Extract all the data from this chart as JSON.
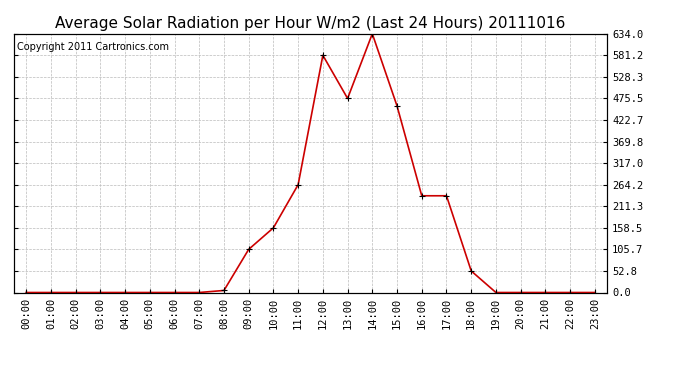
{
  "title": "Average Solar Radiation per Hour W/m2 (Last 24 Hours) 20111016",
  "copyright": "Copyright 2011 Cartronics.com",
  "hours": [
    "00:00",
    "01:00",
    "02:00",
    "03:00",
    "04:00",
    "05:00",
    "06:00",
    "07:00",
    "08:00",
    "09:00",
    "10:00",
    "11:00",
    "12:00",
    "13:00",
    "14:00",
    "15:00",
    "16:00",
    "17:00",
    "18:00",
    "19:00",
    "20:00",
    "21:00",
    "22:00",
    "23:00"
  ],
  "values": [
    0.0,
    0.0,
    0.0,
    0.0,
    0.0,
    0.0,
    0.0,
    0.0,
    5.0,
    105.7,
    158.5,
    264.2,
    581.2,
    475.5,
    634.0,
    457.0,
    237.0,
    237.0,
    52.8,
    0.0,
    0.0,
    0.0,
    0.0,
    0.0
  ],
  "line_color": "#cc0000",
  "marker": "+",
  "marker_color": "#000000",
  "marker_size": 4,
  "background_color": "#ffffff",
  "grid_color": "#bbbbbb",
  "ylim": [
    0.0,
    634.0
  ],
  "yticks": [
    0.0,
    52.8,
    105.7,
    158.5,
    211.3,
    264.2,
    317.0,
    369.8,
    422.7,
    475.5,
    528.3,
    581.2,
    634.0
  ],
  "title_fontsize": 11,
  "copyright_fontsize": 7,
  "tick_fontsize": 7.5
}
